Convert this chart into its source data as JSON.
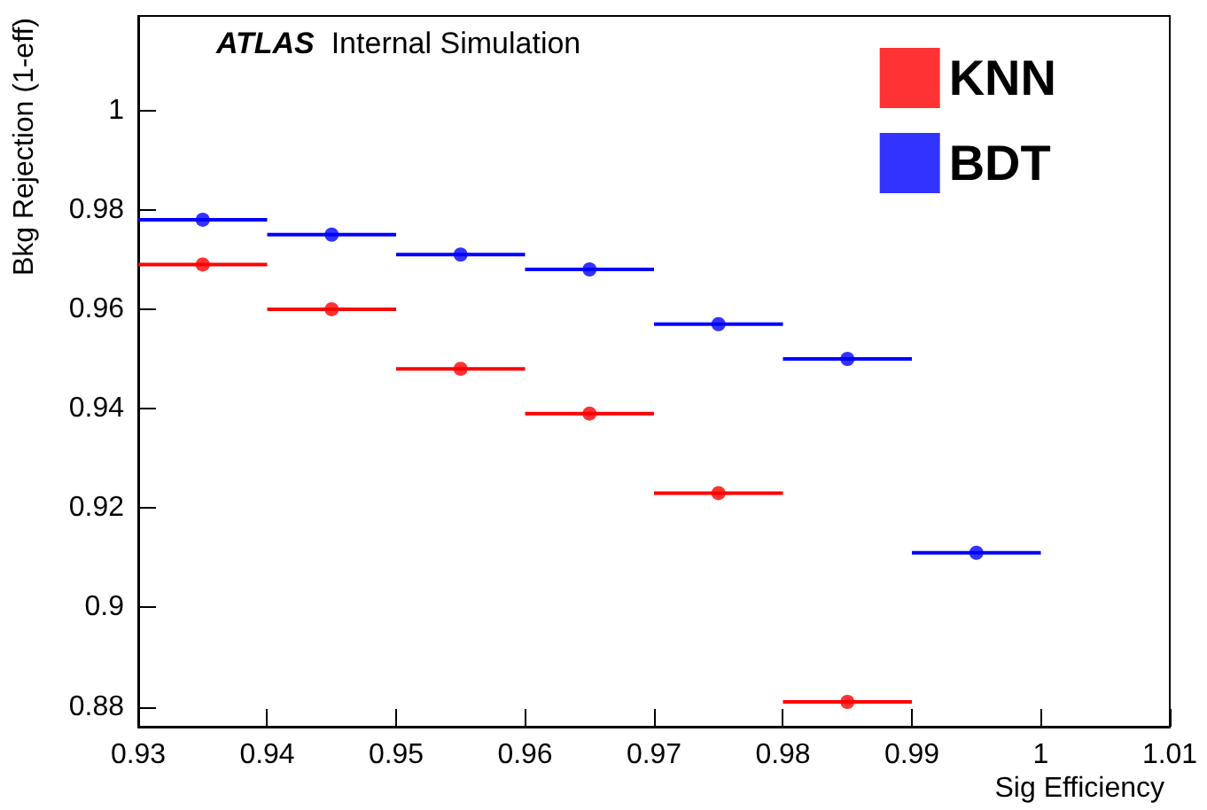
{
  "chart_data": {
    "type": "scatter",
    "xlabel": "Sig Efficiency",
    "ylabel": "Bkg Rejection (1-eff)",
    "annotations": [
      "ATLAS Internal Simulation"
    ],
    "series": [
      {
        "name": "KNN",
        "color": "#ff0000",
        "x": [
          0.935,
          0.945,
          0.955,
          0.965,
          0.975,
          0.985
        ],
        "values": [
          0.969,
          0.96,
          0.948,
          0.939,
          0.923,
          0.881
        ],
        "xerrors": [
          0.005,
          0.005,
          0.005,
          0.005,
          0.005,
          0.005
        ]
      },
      {
        "name": "BDT",
        "color": "#0000ff",
        "x": [
          0.935,
          0.945,
          0.955,
          0.965,
          0.975,
          0.985,
          0.995
        ],
        "values": [
          0.978,
          0.975,
          0.971,
          0.968,
          0.957,
          0.95,
          0.911
        ],
        "xerrors": [
          0.005,
          0.005,
          0.005,
          0.005,
          0.005,
          0.005,
          0.005
        ]
      }
    ],
    "xlim": [
      0.93,
      1.01
    ],
    "xticks": [
      0.93,
      0.94,
      0.95,
      0.96,
      0.97,
      0.98,
      0.99,
      1,
      1.01
    ],
    "ylim": [
      0.876,
      1.019
    ],
    "yticks": [
      0.88,
      0.9,
      0.92,
      0.94,
      0.96,
      0.98,
      1
    ],
    "grid": false,
    "legend": "top right",
    "marker": "circle"
  }
}
